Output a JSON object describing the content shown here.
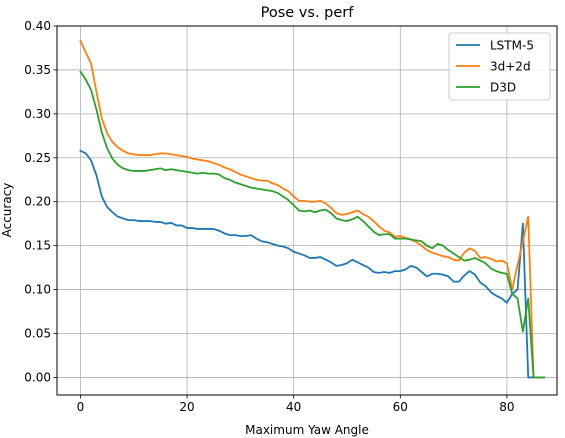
{
  "chart_data": {
    "type": "line",
    "title": "Pose vs. perf",
    "xlabel": "Maximum Yaw Angle",
    "ylabel": "Accuracy",
    "xlim": [
      -4.4,
      89.4
    ],
    "ylim": [
      -0.02,
      0.4
    ],
    "xticks": [
      0,
      20,
      40,
      60,
      80
    ],
    "yticks": [
      0.0,
      0.05,
      0.1,
      0.15,
      0.2,
      0.25,
      0.3,
      0.35,
      0.4
    ],
    "xtick_labels": [
      "0",
      "20",
      "40",
      "60",
      "80"
    ],
    "ytick_labels": [
      "0.00",
      "0.05",
      "0.10",
      "0.15",
      "0.20",
      "0.25",
      "0.30",
      "0.35",
      "0.40"
    ],
    "grid": true,
    "legend_position": "top-right",
    "series": [
      {
        "name": "LSTM-5",
        "color": "#1f77b4",
        "x": [
          0,
          1,
          2,
          3,
          4,
          5,
          6,
          7,
          8,
          9,
          10,
          11,
          12,
          13,
          14,
          15,
          16,
          17,
          18,
          19,
          20,
          21,
          22,
          23,
          24,
          25,
          26,
          27,
          28,
          29,
          30,
          31,
          32,
          33,
          34,
          35,
          36,
          37,
          38,
          39,
          40,
          41,
          42,
          43,
          44,
          45,
          46,
          47,
          48,
          49,
          50,
          51,
          52,
          53,
          54,
          55,
          56,
          57,
          58,
          59,
          60,
          61,
          62,
          63,
          64,
          65,
          66,
          67,
          68,
          69,
          70,
          71,
          72,
          73,
          74,
          75,
          76,
          77,
          78,
          79,
          80,
          81,
          82,
          83,
          84,
          85,
          86,
          87
        ],
        "values": [
          0.258,
          0.255,
          0.247,
          0.23,
          0.206,
          0.194,
          0.188,
          0.183,
          0.181,
          0.179,
          0.179,
          0.178,
          0.178,
          0.178,
          0.177,
          0.177,
          0.175,
          0.176,
          0.173,
          0.173,
          0.17,
          0.17,
          0.169,
          0.169,
          0.169,
          0.169,
          0.167,
          0.164,
          0.162,
          0.162,
          0.161,
          0.161,
          0.162,
          0.158,
          0.155,
          0.154,
          0.152,
          0.15,
          0.149,
          0.147,
          0.143,
          0.141,
          0.139,
          0.136,
          0.136,
          0.137,
          0.134,
          0.131,
          0.127,
          0.128,
          0.13,
          0.134,
          0.131,
          0.128,
          0.125,
          0.12,
          0.119,
          0.12,
          0.119,
          0.121,
          0.121,
          0.123,
          0.127,
          0.125,
          0.12,
          0.115,
          0.118,
          0.118,
          0.117,
          0.115,
          0.109,
          0.109,
          0.116,
          0.121,
          0.117,
          0.108,
          0.104,
          0.097,
          0.093,
          0.09,
          0.085,
          0.095,
          0.1,
          0.175,
          0.0,
          0.0,
          0.0,
          0.0
        ]
      },
      {
        "name": "3d+2d",
        "color": "#ff7f0e",
        "x": [
          0,
          1,
          2,
          3,
          4,
          5,
          6,
          7,
          8,
          9,
          10,
          11,
          12,
          13,
          14,
          15,
          16,
          17,
          18,
          19,
          20,
          21,
          22,
          23,
          24,
          25,
          26,
          27,
          28,
          29,
          30,
          31,
          32,
          33,
          34,
          35,
          36,
          37,
          38,
          39,
          40,
          41,
          42,
          43,
          44,
          45,
          46,
          47,
          48,
          49,
          50,
          51,
          52,
          53,
          54,
          55,
          56,
          57,
          58,
          59,
          60,
          61,
          62,
          63,
          64,
          65,
          66,
          67,
          68,
          69,
          70,
          71,
          72,
          73,
          74,
          75,
          76,
          77,
          78,
          79,
          80,
          81,
          82,
          83,
          84,
          85,
          86,
          87
        ],
        "values": [
          0.383,
          0.37,
          0.357,
          0.325,
          0.295,
          0.278,
          0.268,
          0.262,
          0.258,
          0.255,
          0.254,
          0.253,
          0.253,
          0.253,
          0.254,
          0.255,
          0.255,
          0.254,
          0.253,
          0.252,
          0.251,
          0.249,
          0.248,
          0.247,
          0.246,
          0.244,
          0.242,
          0.239,
          0.237,
          0.234,
          0.231,
          0.229,
          0.227,
          0.225,
          0.224,
          0.224,
          0.221,
          0.219,
          0.215,
          0.212,
          0.206,
          0.201,
          0.201,
          0.2,
          0.2,
          0.201,
          0.198,
          0.193,
          0.187,
          0.185,
          0.186,
          0.188,
          0.19,
          0.186,
          0.183,
          0.178,
          0.172,
          0.167,
          0.165,
          0.16,
          0.161,
          0.159,
          0.157,
          0.154,
          0.15,
          0.145,
          0.142,
          0.14,
          0.138,
          0.137,
          0.134,
          0.133,
          0.142,
          0.147,
          0.144,
          0.136,
          0.137,
          0.135,
          0.132,
          0.133,
          0.13,
          0.1,
          0.128,
          0.155,
          0.183,
          0.0,
          0.0,
          0.0
        ]
      },
      {
        "name": "D3D",
        "color": "#2ca02c",
        "x": [
          0,
          1,
          2,
          3,
          4,
          5,
          6,
          7,
          8,
          9,
          10,
          11,
          12,
          13,
          14,
          15,
          16,
          17,
          18,
          19,
          20,
          21,
          22,
          23,
          24,
          25,
          26,
          27,
          28,
          29,
          30,
          31,
          32,
          33,
          34,
          35,
          36,
          37,
          38,
          39,
          40,
          41,
          42,
          43,
          44,
          45,
          46,
          47,
          48,
          49,
          50,
          51,
          52,
          53,
          54,
          55,
          56,
          57,
          58,
          59,
          60,
          61,
          62,
          63,
          64,
          65,
          66,
          67,
          68,
          69,
          70,
          71,
          72,
          73,
          74,
          75,
          76,
          77,
          78,
          79,
          80,
          81,
          82,
          83,
          84,
          85,
          86,
          87
        ],
        "values": [
          0.348,
          0.339,
          0.327,
          0.305,
          0.279,
          0.261,
          0.249,
          0.242,
          0.238,
          0.236,
          0.235,
          0.235,
          0.235,
          0.236,
          0.237,
          0.238,
          0.236,
          0.237,
          0.236,
          0.235,
          0.234,
          0.233,
          0.232,
          0.233,
          0.232,
          0.232,
          0.231,
          0.227,
          0.225,
          0.222,
          0.22,
          0.218,
          0.216,
          0.215,
          0.214,
          0.213,
          0.212,
          0.21,
          0.206,
          0.202,
          0.196,
          0.19,
          0.189,
          0.19,
          0.188,
          0.19,
          0.191,
          0.187,
          0.181,
          0.179,
          0.178,
          0.18,
          0.183,
          0.178,
          0.172,
          0.166,
          0.162,
          0.163,
          0.163,
          0.158,
          0.158,
          0.158,
          0.157,
          0.156,
          0.155,
          0.15,
          0.147,
          0.152,
          0.15,
          0.145,
          0.141,
          0.137,
          0.133,
          0.134,
          0.136,
          0.133,
          0.13,
          0.124,
          0.121,
          0.119,
          0.118,
          0.095,
          0.09,
          0.052,
          0.09,
          0.0,
          0.0,
          0.0
        ]
      }
    ]
  }
}
